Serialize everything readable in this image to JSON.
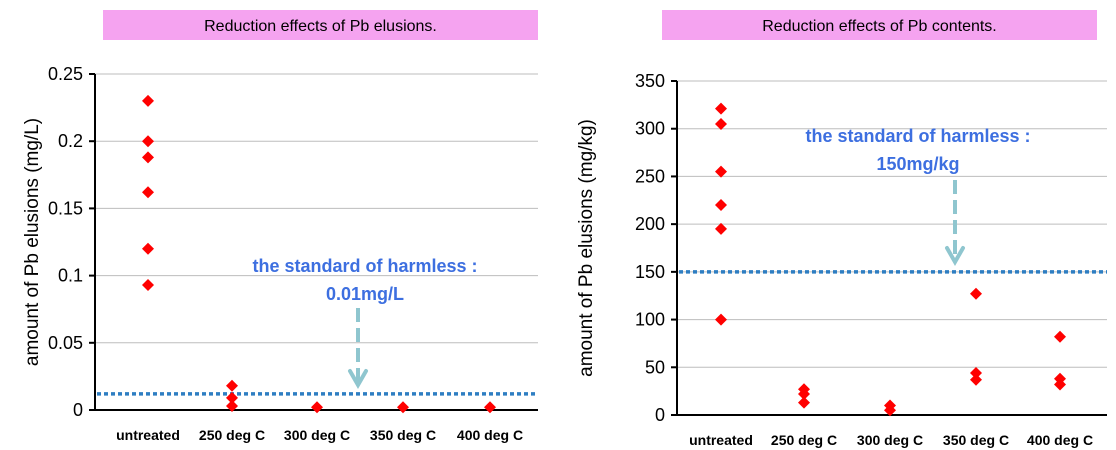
{
  "chart_data": [
    {
      "type": "scatter",
      "title": "Reduction effects of Pb elusions.",
      "ylabel": "amount of Pb elusions  (mg/L)",
      "ylim": [
        0,
        0.25
      ],
      "yticks": [
        "0",
        "0.05",
        "0.1",
        "0.15",
        "0.2",
        "0.25"
      ],
      "ytick_values": [
        0,
        0.05,
        0.1,
        0.15,
        0.2,
        0.25
      ],
      "categories": [
        "untreated",
        "250 deg C",
        "300 deg C",
        "350 deg C",
        "400 deg C"
      ],
      "grid": true,
      "marker_color": "#ff0000",
      "points": [
        {
          "x": "untreated",
          "y": 0.23
        },
        {
          "x": "untreated",
          "y": 0.2
        },
        {
          "x": "untreated",
          "y": 0.188
        },
        {
          "x": "untreated",
          "y": 0.162
        },
        {
          "x": "untreated",
          "y": 0.12
        },
        {
          "x": "untreated",
          "y": 0.093
        },
        {
          "x": "250 deg C",
          "y": 0.018
        },
        {
          "x": "250 deg C",
          "y": 0.009
        },
        {
          "x": "250 deg C",
          "y": 0.003
        },
        {
          "x": "300 deg C",
          "y": 0.002
        },
        {
          "x": "350 deg C",
          "y": 0.002
        },
        {
          "x": "400 deg C",
          "y": 0.002
        }
      ],
      "reference_line": {
        "value": 0.012,
        "color": "#2e7ec2",
        "style": "dotted"
      },
      "annotation": {
        "line1": "the standard of harmless :",
        "line2": "0.01mg/L",
        "color": "#3d6fe0"
      }
    },
    {
      "type": "scatter",
      "title": "Reduction effects of Pb contents.",
      "ylabel": "amount of Pb elusions (mg/kg)",
      "ylim": [
        0,
        350
      ],
      "yticks": [
        "0",
        "50",
        "100",
        "150",
        "200",
        "250",
        "300",
        "350"
      ],
      "ytick_values": [
        0,
        50,
        100,
        150,
        200,
        250,
        300,
        350
      ],
      "categories": [
        "untreated",
        "250 deg C",
        "300 deg C",
        "350 deg C",
        "400 deg C"
      ],
      "grid": true,
      "marker_color": "#ff0000",
      "points": [
        {
          "x": "untreated",
          "y": 321
        },
        {
          "x": "untreated",
          "y": 305
        },
        {
          "x": "untreated",
          "y": 255
        },
        {
          "x": "untreated",
          "y": 220
        },
        {
          "x": "untreated",
          "y": 195
        },
        {
          "x": "untreated",
          "y": 100
        },
        {
          "x": "250 deg C",
          "y": 27
        },
        {
          "x": "250 deg C",
          "y": 22
        },
        {
          "x": "250 deg C",
          "y": 13
        },
        {
          "x": "300 deg C",
          "y": 10
        },
        {
          "x": "300 deg C",
          "y": 5
        },
        {
          "x": "350 deg C",
          "y": 127
        },
        {
          "x": "350 deg C",
          "y": 44
        },
        {
          "x": "350 deg C",
          "y": 37
        },
        {
          "x": "400 deg C",
          "y": 82
        },
        {
          "x": "400 deg C",
          "y": 38
        },
        {
          "x": "400 deg C",
          "y": 32
        }
      ],
      "reference_line": {
        "value": 150,
        "color": "#2e7ec2",
        "style": "dotted"
      },
      "annotation": {
        "line1": "the standard of harmless :",
        "line2": "150mg/kg",
        "color": "#3d6fe0"
      }
    }
  ]
}
